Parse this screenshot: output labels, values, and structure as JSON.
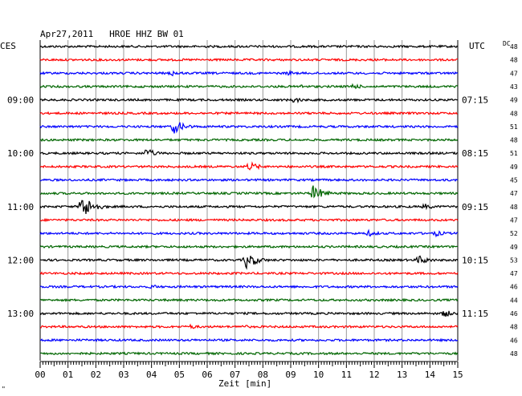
{
  "header": {
    "title": "Apr27,2011   HROE HHZ BW 01",
    "left_zone": "CES",
    "right_zone": "UTC",
    "dc_label": "DC"
  },
  "footer": {
    "small_mark": "\""
  },
  "chart_data": {
    "type": "line",
    "title": "Apr27,2011   HROE HHZ BW 01",
    "xlabel": "Zeit [min]",
    "ylabel": "",
    "xlim": [
      0,
      15
    ],
    "x_ticks": [
      "00",
      "01",
      "02",
      "03",
      "04",
      "05",
      "06",
      "07",
      "08",
      "09",
      "10",
      "11",
      "12",
      "13",
      "14",
      "15"
    ],
    "trace_count": 24,
    "trace_colors": [
      "#000000",
      "#ff0000",
      "#0000ff",
      "#006600"
    ],
    "left_time_labels": [
      {
        "trace": 4,
        "label": "09:00"
      },
      {
        "trace": 8,
        "label": "10:00"
      },
      {
        "trace": 12,
        "label": "11:00"
      },
      {
        "trace": 16,
        "label": "12:00"
      },
      {
        "trace": 20,
        "label": "13:00"
      }
    ],
    "right_time_labels": [
      {
        "trace": 4,
        "label": "07:15"
      },
      {
        "trace": 8,
        "label": "08:15"
      },
      {
        "trace": 12,
        "label": "09:15"
      },
      {
        "trace": 16,
        "label": "10:15"
      },
      {
        "trace": 20,
        "label": "11:15"
      }
    ],
    "dc_values": [
      48,
      48,
      47,
      43,
      49,
      48,
      51,
      48,
      51,
      49,
      45,
      47,
      48,
      47,
      52,
      49,
      53,
      47,
      46,
      44,
      46,
      48,
      46,
      48
    ],
    "events": [
      {
        "trace": 2,
        "minute": 4.7,
        "amplitude": 4
      },
      {
        "trace": 2,
        "minute": 8.9,
        "amplitude": 3
      },
      {
        "trace": 3,
        "minute": 9.3,
        "amplitude": 3
      },
      {
        "trace": 3,
        "minute": 11.2,
        "amplitude": 4
      },
      {
        "trace": 4,
        "minute": 9.1,
        "amplitude": 4
      },
      {
        "trace": 6,
        "minute": 4.8,
        "amplitude": 9
      },
      {
        "trace": 8,
        "minute": 3.8,
        "amplitude": 6
      },
      {
        "trace": 9,
        "minute": 7.5,
        "amplitude": 6
      },
      {
        "trace": 11,
        "minute": 9.8,
        "amplitude": 10
      },
      {
        "trace": 12,
        "minute": 1.5,
        "amplitude": 16
      },
      {
        "trace": 12,
        "minute": 13.8,
        "amplitude": 4
      },
      {
        "trace": 14,
        "minute": 11.8,
        "amplitude": 4
      },
      {
        "trace": 14,
        "minute": 14.2,
        "amplitude": 4
      },
      {
        "trace": 16,
        "minute": 7.4,
        "amplitude": 11
      },
      {
        "trace": 16,
        "minute": 13.6,
        "amplitude": 6
      },
      {
        "trace": 18,
        "minute": 4.0,
        "amplitude": 3
      },
      {
        "trace": 20,
        "minute": 14.5,
        "amplitude": 5
      },
      {
        "trace": 21,
        "minute": 5.4,
        "amplitude": 3
      },
      {
        "trace": 21,
        "minute": 7.2,
        "amplitude": 3
      }
    ],
    "grid": true
  }
}
